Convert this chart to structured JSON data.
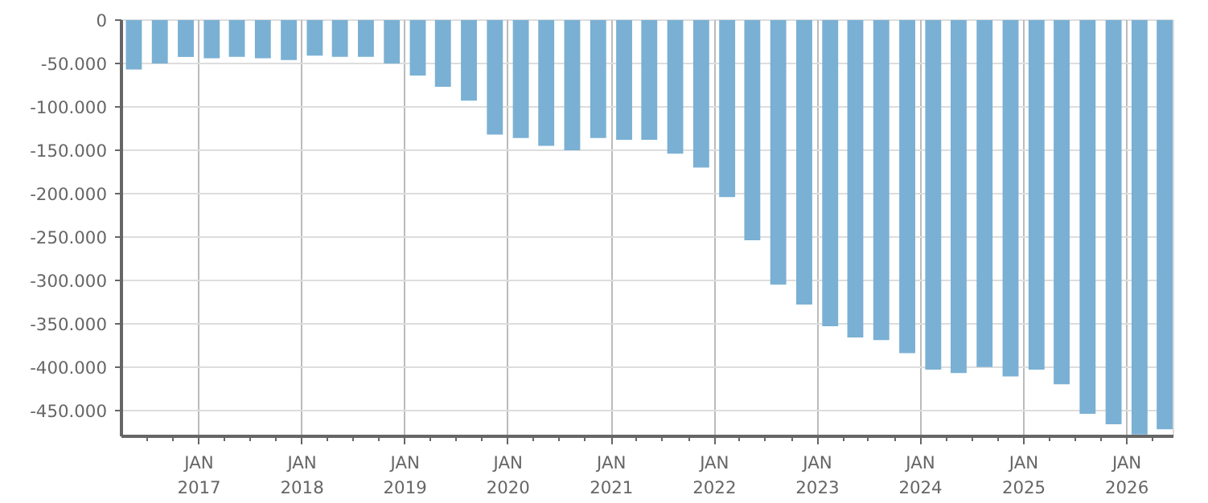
{
  "chart_data": {
    "type": "bar",
    "color": "#7ab0d3",
    "grid": true,
    "x": [
      "2016-05-15",
      "2016-08-15",
      "2016-11-15",
      "2017-02-15",
      "2017-05-15",
      "2017-08-15",
      "2017-11-15",
      "2018-02-15",
      "2018-05-15",
      "2018-08-15",
      "2018-11-15",
      "2019-02-15",
      "2019-05-15",
      "2019-08-15",
      "2019-11-15",
      "2020-02-15",
      "2020-05-15",
      "2020-08-15",
      "2020-11-15",
      "2021-02-15",
      "2021-05-15",
      "2021-08-15",
      "2021-11-15",
      "2022-02-15",
      "2022-05-15",
      "2022-08-15",
      "2022-11-15",
      "2023-02-15",
      "2023-05-15",
      "2023-08-15",
      "2023-11-15",
      "2024-02-15",
      "2024-05-15",
      "2024-08-15",
      "2024-11-15",
      "2025-02-15",
      "2025-05-15",
      "2025-08-15",
      "2025-11-15",
      "2026-02-15",
      "2026-05-15"
    ],
    "values": [
      -57000,
      -50000,
      -42500,
      -44000,
      -42500,
      -44000,
      -46000,
      -41000,
      -42500,
      -42500,
      -50000,
      -64000,
      -77000,
      -93000,
      -132000,
      -136000,
      -145000,
      -150000,
      -136000,
      -138000,
      -138000,
      -154000,
      -170000,
      -204000,
      -254000,
      -305000,
      -328000,
      -353000,
      -366000,
      -369000,
      -384000,
      -403000,
      -407000,
      -400000,
      -411000,
      -403000,
      -420000,
      -454000,
      -466000,
      -478000,
      -472000
    ],
    "xlim": [
      "2016-04-01",
      "2026-06-15"
    ],
    "ylim": [
      -480000,
      0
    ],
    "yticks": [
      0,
      {
        "value": -50000,
        "label": "-50.000"
      },
      {
        "value": -100000,
        "label": "-100.000"
      },
      {
        "value": -150000,
        "label": "-150.000"
      },
      {
        "value": -200000,
        "label": "-200.000"
      },
      {
        "value": -250000,
        "label": "-250.000"
      },
      {
        "value": -300000,
        "label": "-300.000"
      },
      {
        "value": -350000,
        "label": "-350.000"
      },
      {
        "value": -400000,
        "label": "-400.000"
      },
      {
        "value": -450000,
        "label": "-450.000"
      }
    ],
    "xticks": [
      {
        "value": "2016-07-01",
        "label": null
      },
      {
        "value": "2016-10-01",
        "label": null
      },
      {
        "value": "2017-01-01",
        "label": "JAN\n2017"
      },
      {
        "value": "2017-04-01",
        "label": null
      },
      {
        "value": "2017-07-01",
        "label": null
      },
      {
        "value": "2017-10-01",
        "label": null
      },
      {
        "value": "2018-01-01",
        "label": "JAN\n2018"
      },
      {
        "value": "2018-04-01",
        "label": null
      },
      {
        "value": "2018-07-01",
        "label": null
      },
      {
        "value": "2018-10-01",
        "label": null
      },
      {
        "value": "2019-01-01",
        "label": "JAN\n2019"
      },
      {
        "value": "2019-04-01",
        "label": null
      },
      {
        "value": "2019-07-01",
        "label": null
      },
      {
        "value": "2019-10-01",
        "label": null
      },
      {
        "value": "2020-01-01",
        "label": "JAN\n2020"
      },
      {
        "value": "2020-04-01",
        "label": null
      },
      {
        "value": "2020-07-01",
        "label": null
      },
      {
        "value": "2020-10-01",
        "label": null
      },
      {
        "value": "2021-01-01",
        "label": "JAN\n2021"
      },
      {
        "value": "2021-04-01",
        "label": null
      },
      {
        "value": "2021-07-01",
        "label": null
      },
      {
        "value": "2021-10-01",
        "label": null
      },
      {
        "value": "2022-01-01",
        "label": "JAN\n2022"
      },
      {
        "value": "2022-04-01",
        "label": null
      },
      {
        "value": "2022-07-01",
        "label": null
      },
      {
        "value": "2022-10-01",
        "label": null
      },
      {
        "value": "2023-01-01",
        "label": "JAN\n2023"
      },
      {
        "value": "2023-04-01",
        "label": null
      },
      {
        "value": "2023-07-01",
        "label": null
      },
      {
        "value": "2023-10-01",
        "label": null
      },
      {
        "value": "2024-01-01",
        "label": "JAN\n2024"
      },
      {
        "value": "2024-04-01",
        "label": null
      },
      {
        "value": "2024-07-01",
        "label": null
      },
      {
        "value": "2024-10-01",
        "label": null
      },
      {
        "value": "2025-01-01",
        "label": "JAN\n2025"
      },
      {
        "value": "2025-04-01",
        "label": null
      },
      {
        "value": "2025-07-01",
        "label": null
      },
      {
        "value": "2025-10-01",
        "label": null
      },
      {
        "value": "2026-01-01",
        "label": "JAN\n2026"
      },
      {
        "value": "2026-04-01",
        "label": null
      }
    ]
  }
}
